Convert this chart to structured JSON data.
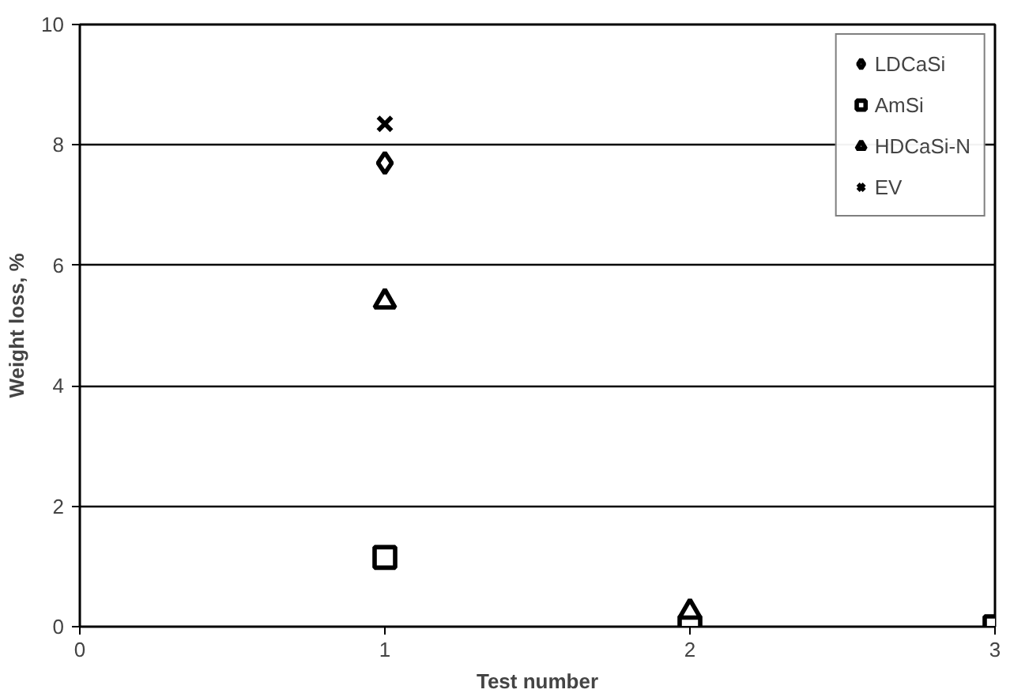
{
  "chart_data": {
    "type": "scatter",
    "xlabel": "Test number",
    "ylabel": "Weight loss, %",
    "xlim": [
      0,
      3
    ],
    "xticks": [
      0,
      1,
      2,
      3
    ],
    "ylim": [
      0,
      10
    ],
    "yticks": [
      0,
      2,
      4,
      6,
      8,
      10
    ],
    "grid": "y",
    "legend": "top right",
    "series": [
      {
        "name": "LDCaSi",
        "color": "#000000",
        "marker": "diamond",
        "x": [
          1
        ],
        "values": [
          7.7
        ]
      },
      {
        "name": "AmSi",
        "color": "#000000",
        "marker": "square",
        "x": [
          1,
          2,
          3
        ],
        "values": [
          1.15,
          0,
          0
        ]
      },
      {
        "name": "HDCaSi-N",
        "color": "#000000",
        "marker": "triangle",
        "x": [
          1,
          2
        ],
        "values": [
          5.4,
          0.25
        ]
      },
      {
        "name": "EV",
        "color": "#000000",
        "marker": "cross",
        "x": [
          1
        ],
        "values": [
          8.35
        ]
      }
    ]
  }
}
